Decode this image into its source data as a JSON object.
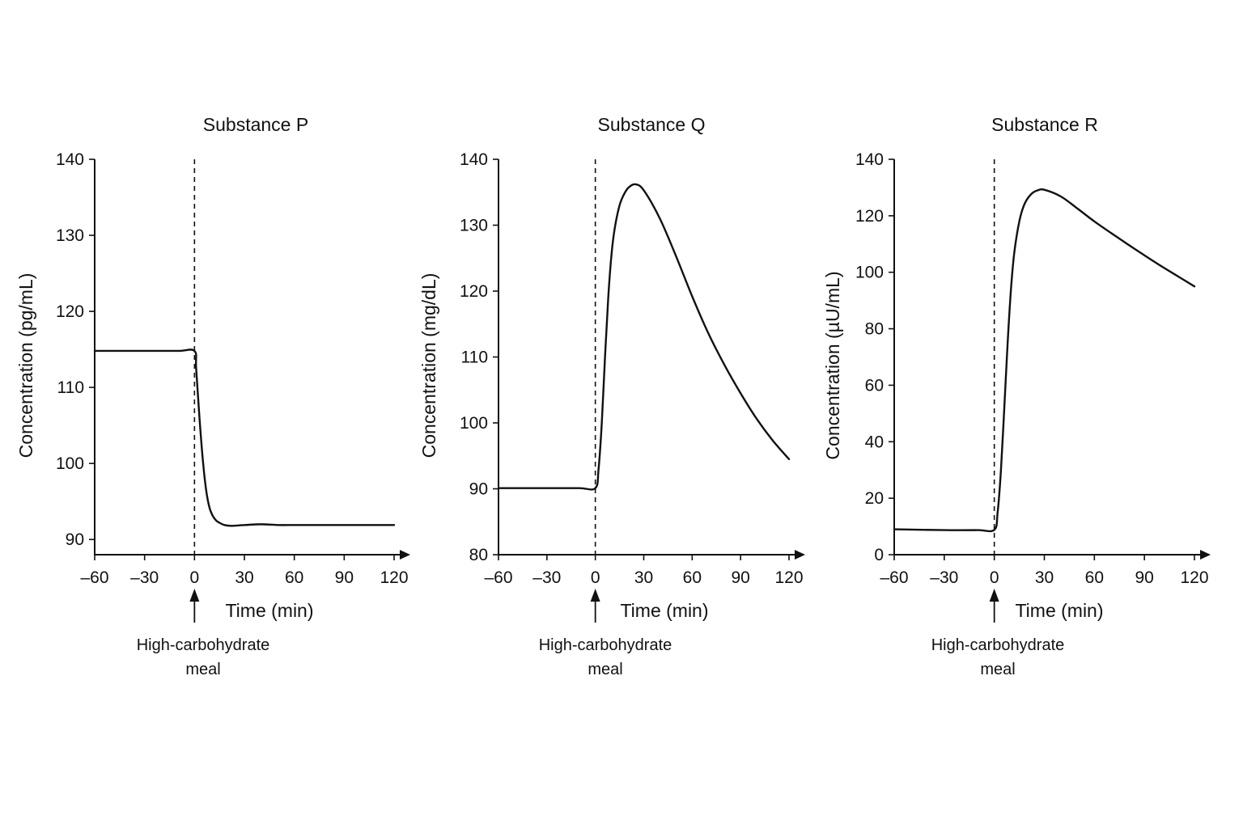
{
  "chart_data": [
    {
      "type": "line",
      "title": "Substance P",
      "xlabel": "Time (min)",
      "ylabel": "Concentration (pg/mL)",
      "xlim": [
        -60,
        120
      ],
      "ylim": [
        88,
        140
      ],
      "xticks": [
        -60,
        -30,
        0,
        30,
        60,
        90,
        120
      ],
      "xtick_labels": [
        "–60",
        "–30",
        "0",
        "30",
        "60",
        "90",
        "120"
      ],
      "yticks": [
        90,
        100,
        110,
        120,
        130,
        140
      ],
      "ytick_labels": [
        "90",
        "100",
        "110",
        "120",
        "130",
        "140"
      ],
      "annotation": {
        "x": 0,
        "line1": "High-carbohydrate",
        "line2": "meal"
      },
      "series": [
        {
          "x": [
            -60,
            -30,
            -10,
            0,
            1,
            3,
            5,
            7,
            9,
            11,
            13,
            15,
            18,
            22,
            30,
            40,
            50,
            60,
            75,
            90,
            105,
            120
          ],
          "y": [
            114.8,
            114.8,
            114.8,
            114.8,
            112.5,
            106,
            100.5,
            96.5,
            94.2,
            93.1,
            92.5,
            92.2,
            91.9,
            91.8,
            91.9,
            92,
            91.9,
            91.9,
            91.9,
            91.9,
            91.9,
            91.9
          ]
        }
      ]
    },
    {
      "type": "line",
      "title": "Substance Q",
      "xlabel": "Time (min)",
      "ylabel": "Concentration (mg/dL)",
      "xlim": [
        -60,
        120
      ],
      "ylim": [
        80,
        140
      ],
      "xticks": [
        -60,
        -30,
        0,
        30,
        60,
        90,
        120
      ],
      "xtick_labels": [
        "–60",
        "–30",
        "0",
        "30",
        "60",
        "90",
        "120"
      ],
      "yticks": [
        80,
        90,
        100,
        110,
        120,
        130,
        140
      ],
      "ytick_labels": [
        "80",
        "90",
        "100",
        "110",
        "120",
        "130",
        "140"
      ],
      "annotation": {
        "x": 0,
        "line1": "High-carbohydrate",
        "line2": "meal"
      },
      "series": [
        {
          "x": [
            -60,
            -30,
            -10,
            0,
            2,
            4,
            6,
            8,
            10,
            12,
            15,
            18,
            21,
            25,
            30,
            40,
            50,
            60,
            70,
            80,
            90,
            100,
            110,
            120
          ],
          "y": [
            90.1,
            90.1,
            90.1,
            90.1,
            93,
            100,
            110,
            119,
            125.5,
            129.5,
            133,
            134.8,
            135.8,
            136.2,
            135.3,
            131,
            125.3,
            119.2,
            113.6,
            108.8,
            104.5,
            100.6,
            97.3,
            94.5
          ]
        }
      ]
    },
    {
      "type": "line",
      "title": "Substance R",
      "xlabel": "Time (min)",
      "ylabel": "Concentration (µU/mL)",
      "xlim": [
        -60,
        120
      ],
      "ylim": [
        0,
        140
      ],
      "xticks": [
        -60,
        -30,
        0,
        30,
        60,
        90,
        120
      ],
      "xtick_labels": [
        "–60",
        "–30",
        "0",
        "30",
        "60",
        "90",
        "120"
      ],
      "yticks": [
        0,
        20,
        40,
        60,
        80,
        100,
        120,
        140
      ],
      "ytick_labels": [
        "0",
        "20",
        "40",
        "60",
        "80",
        "100",
        "120",
        "140"
      ],
      "annotation": {
        "x": 0,
        "line1": "High-carbohydrate",
        "line2": "meal"
      },
      "series": [
        {
          "x": [
            -60,
            -30,
            -10,
            0,
            2,
            4,
            6,
            8,
            10,
            12,
            15,
            18,
            22,
            26,
            30,
            40,
            50,
            60,
            70,
            80,
            90,
            100,
            110,
            120
          ],
          "y": [
            9,
            8.7,
            8.7,
            8.8,
            15,
            30,
            52,
            75,
            94,
            107,
            118,
            124,
            127.6,
            129,
            129.2,
            126.8,
            122.5,
            118,
            113.9,
            109.9,
            106,
            102.2,
            98.6,
            95
          ]
        }
      ]
    }
  ]
}
